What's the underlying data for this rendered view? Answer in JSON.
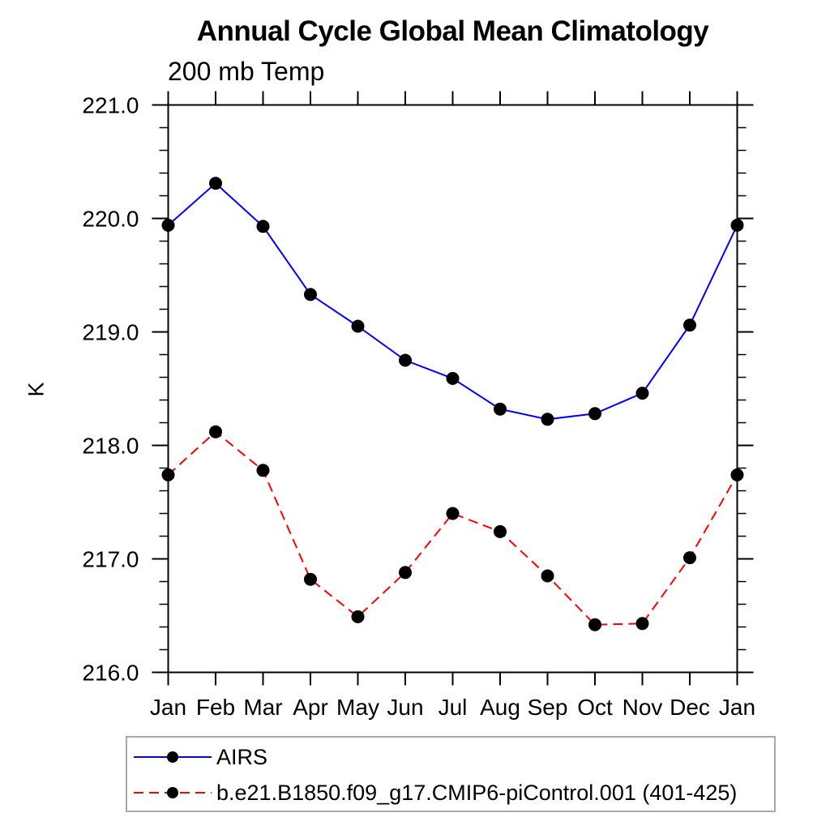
{
  "title": "Annual Cycle Global Mean Climatology",
  "subtitle": "200 mb Temp",
  "ylabel": "K",
  "colors": {
    "background": "#ffffff",
    "axis": "#000000",
    "marker": "#000000",
    "airs_line": "#0000ff",
    "model_line": "#ff0000",
    "legend_border": "#a9a9a9",
    "text": "#000000"
  },
  "legend": {
    "entries": [
      {
        "label": "AIRS",
        "color": "#0000ff",
        "style": "solid",
        "marker": "filled-circle"
      },
      {
        "label": "b.e21.B1850.f09_g17.CMIP6-piControl.001 (401-425)",
        "color": "#ff0000",
        "style": "dashed",
        "marker": "filled-circle"
      }
    ]
  },
  "chart_data": {
    "type": "line",
    "title": "Annual Cycle Global Mean Climatology",
    "subtitle": "200 mb Temp",
    "xlabel": "",
    "ylabel": "K",
    "categories": [
      "Jan",
      "Feb",
      "Mar",
      "Apr",
      "May",
      "Jun",
      "Jul",
      "Aug",
      "Sep",
      "Oct",
      "Nov",
      "Dec",
      "Jan"
    ],
    "series": [
      {
        "name": "AIRS",
        "color": "#0000ff",
        "line_style": "solid",
        "marker": "filled-circle",
        "values": [
          219.94,
          220.31,
          219.93,
          219.33,
          219.05,
          218.75,
          218.59,
          218.32,
          218.23,
          218.28,
          218.46,
          219.06,
          219.94
        ]
      },
      {
        "name": "b.e21.B1850.f09_g17.CMIP6-piControl.001 (401-425)",
        "color": "#ff0000",
        "line_style": "dashed",
        "marker": "filled-circle",
        "values": [
          217.74,
          218.12,
          217.78,
          216.82,
          216.49,
          216.88,
          217.4,
          217.24,
          216.85,
          216.42,
          216.43,
          217.01,
          217.74
        ]
      }
    ],
    "ylim": [
      216.0,
      221.0
    ],
    "ytick_major": 1.0,
    "ytick_minor": 0.2,
    "ytick_labels": [
      "216.0",
      "217.0",
      "218.0",
      "219.0",
      "220.0",
      "221.0"
    ],
    "grid": false,
    "legend_position": "bottom-left-box"
  }
}
